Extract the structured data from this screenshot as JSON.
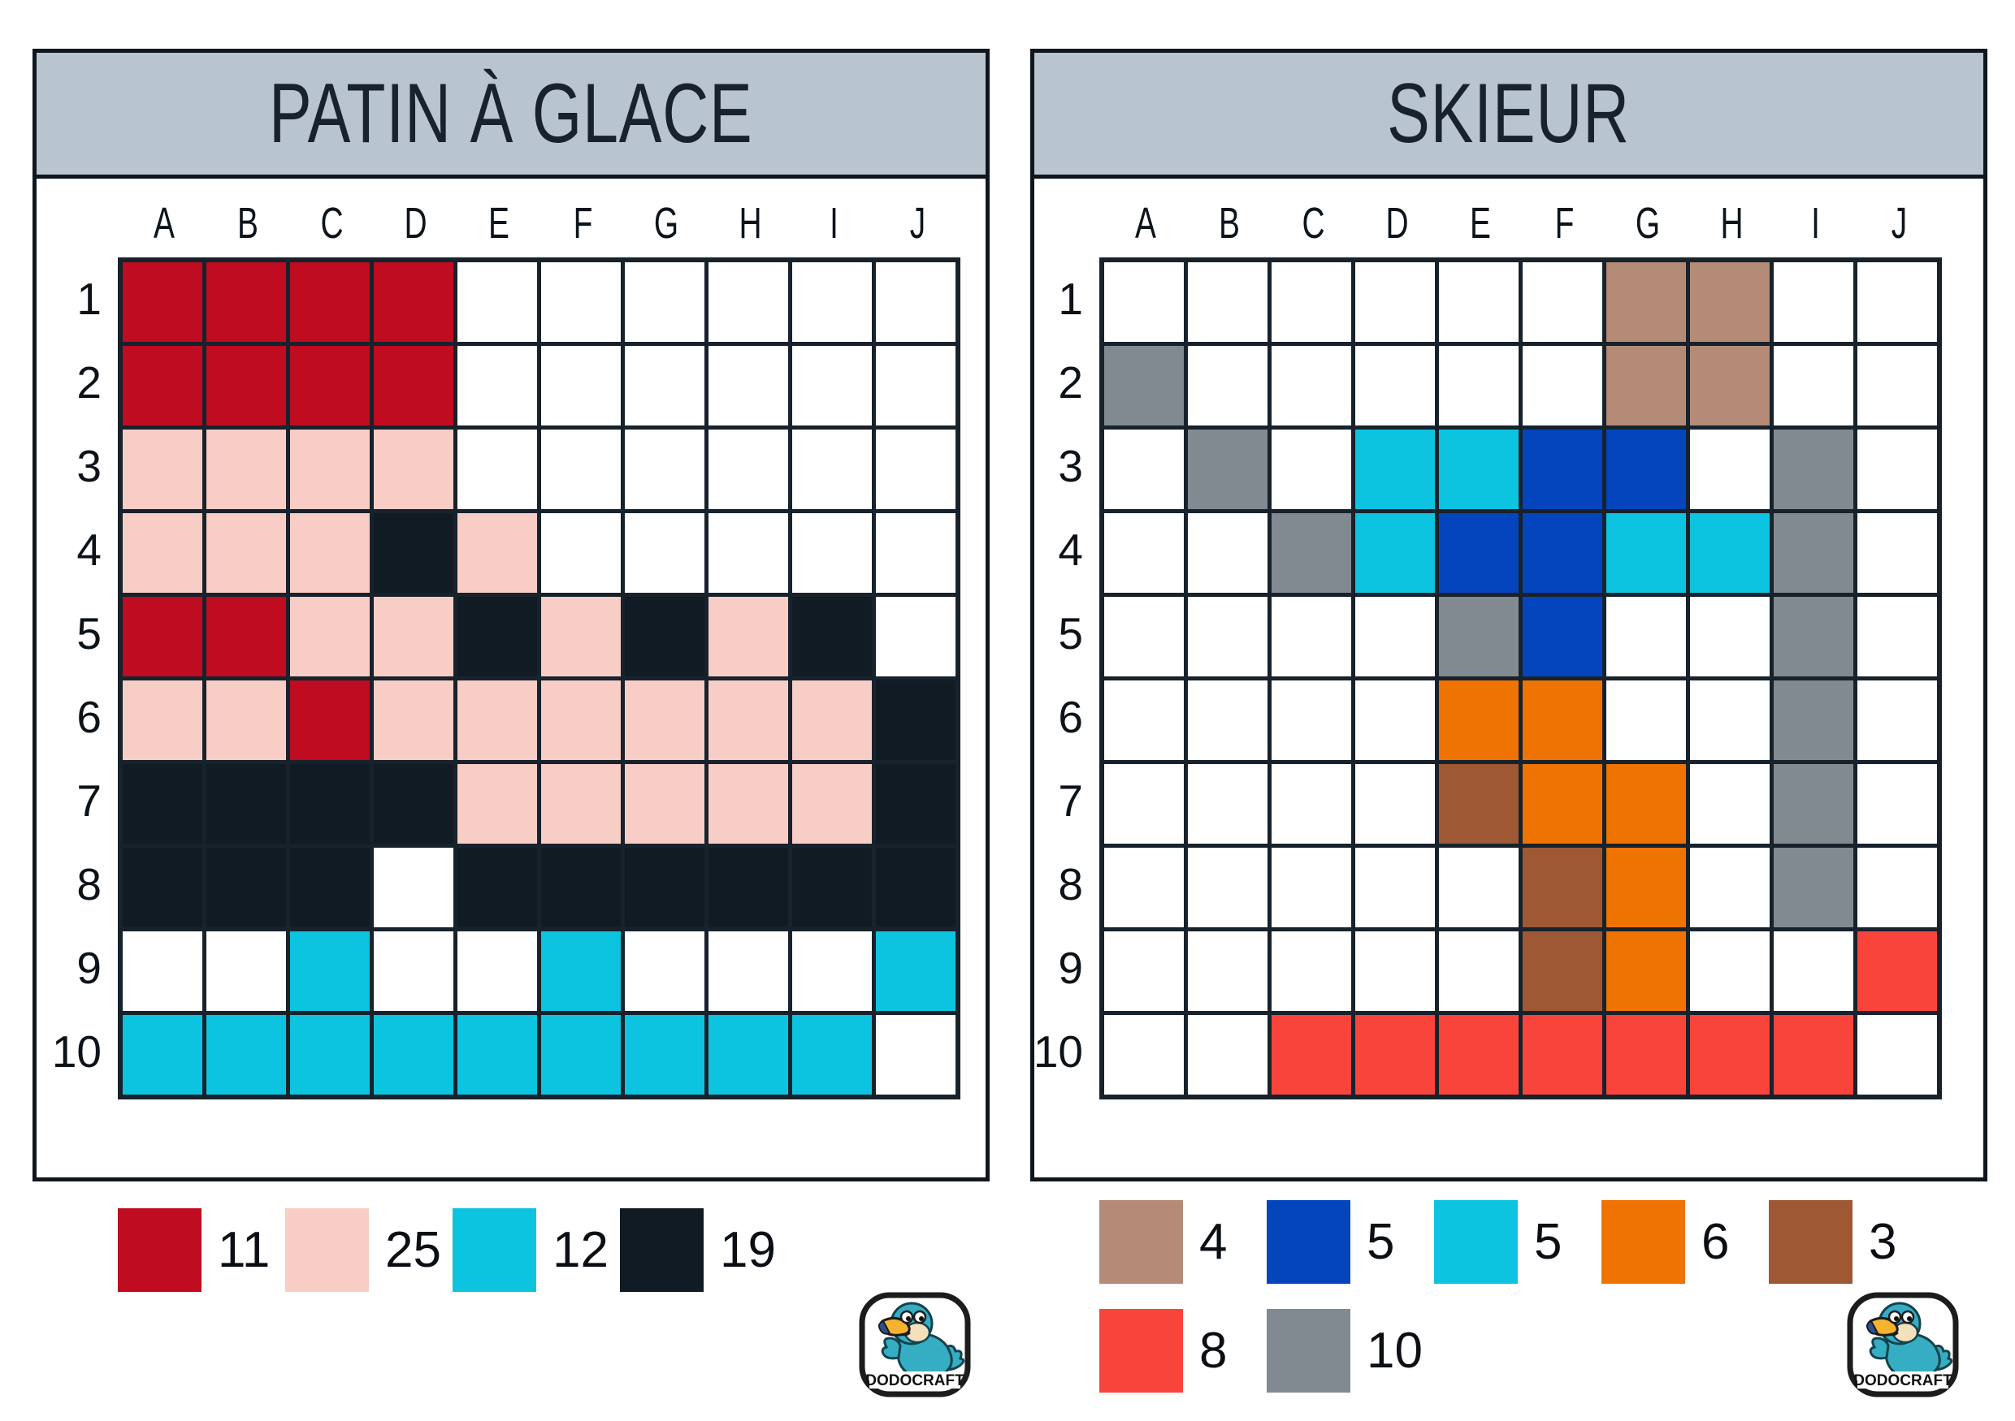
{
  "palette": {
    ".": "#ffffff",
    "R": "#bf0c20",
    "P": "#f8cdc5",
    "C": "#0dc4e0",
    "K": "#111b24",
    "T": "#b48b76",
    "B": "#0445bd",
    "O": "#ef7300",
    "W": "#9e5833",
    "F": "#f9443c",
    "G": "#808a90"
  },
  "header_bg": "#b8c4ce",
  "grid_line_color": "#17222c",
  "panels": [
    {
      "title": "PATIN À GLACE",
      "columns": [
        "A",
        "B",
        "C",
        "D",
        "E",
        "F",
        "G",
        "H",
        "I",
        "J"
      ],
      "rows": [
        "1",
        "2",
        "3",
        "4",
        "5",
        "6",
        "7",
        "8",
        "9",
        "10"
      ],
      "cells": [
        "RRRR......",
        "RRRR......",
        "PPPP......",
        "PPPKP.....",
        "RRPPKPKPK.",
        "PPRPPPPPPK",
        "KKKKPPPPPK",
        "KKK.KKKKKK",
        "..C..C...C",
        "CCCCCCCCC."
      ],
      "legend_rows": [
        [
          {
            "color": "R",
            "count": "11"
          },
          {
            "color": "P",
            "count": "25"
          },
          {
            "color": "C",
            "count": "12"
          },
          {
            "color": "K",
            "count": "19"
          }
        ]
      ]
    },
    {
      "title": "SKIEUR",
      "columns": [
        "A",
        "B",
        "C",
        "D",
        "E",
        "F",
        "G",
        "H",
        "I",
        "J"
      ],
      "rows": [
        "1",
        "2",
        "3",
        "4",
        "5",
        "6",
        "7",
        "8",
        "9",
        "10"
      ],
      "cells": [
        "......TT..",
        "G.....TT..",
        ".G.CCBB.G.",
        "..GCBBCCG.",
        "....GB..G.",
        "....OO..G.",
        "....WOO.G.",
        ".....WO.G.",
        ".....WO..F",
        "..FFFFFFF."
      ],
      "legend_rows": [
        [
          {
            "color": "T",
            "count": "4"
          },
          {
            "color": "B",
            "count": "5"
          },
          {
            "color": "C",
            "count": "5"
          },
          {
            "color": "O",
            "count": "6"
          },
          {
            "color": "W",
            "count": "3"
          }
        ],
        [
          {
            "color": "F",
            "count": "8"
          },
          {
            "color": "G",
            "count": "10"
          }
        ]
      ]
    }
  ],
  "logo": {
    "text": "DODOCRAFT"
  }
}
